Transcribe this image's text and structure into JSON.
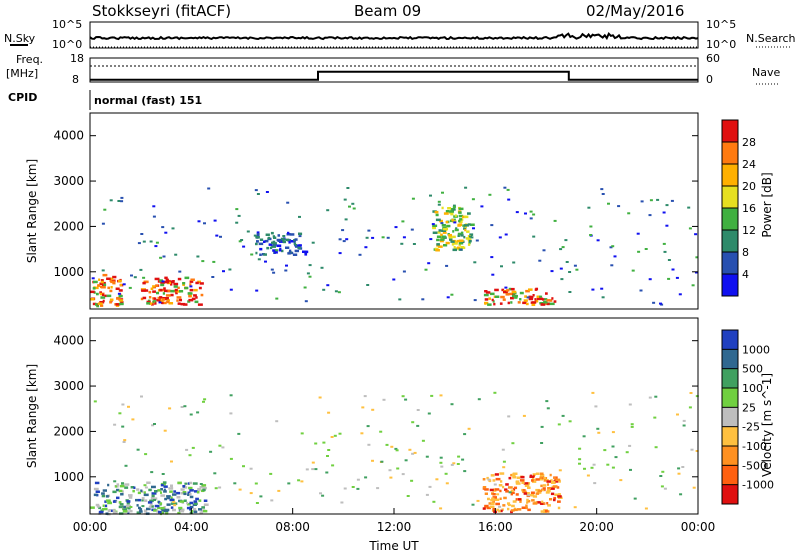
{
  "header": {
    "radar": "Stokkseyri (fitACF)",
    "beam": "Beam 09",
    "date": "02/May/2016"
  },
  "noise_panel": {
    "left_label": "N.Sky",
    "right_label": "N.Search",
    "left_ticks": [
      "10^5",
      "10^0"
    ],
    "right_ticks": [
      "10^5",
      "10^0"
    ]
  },
  "freq_panel": {
    "label_line1": "Freq.",
    "label_line2": "[MHz]",
    "left_ticks": [
      "18",
      "8"
    ],
    "right_ticks": [
      "60",
      "0"
    ],
    "right_label": "Nave",
    "cpid_label": "CPID",
    "cpid_text": "normal (fast) 151"
  },
  "chart_data": [
    {
      "type": "heatmap",
      "title": "",
      "xlabel": "",
      "ylabel": "Slant Range [km]",
      "y_ticks": [
        "1000",
        "2000",
        "3000",
        "4000"
      ],
      "ylim": [
        180,
        4500
      ],
      "colorbar_label": "Power [dB]",
      "colorbar_ticks": [
        "28",
        "24",
        "20",
        "16",
        "12",
        "8",
        "4"
      ],
      "colors": [
        "#e01010",
        "#ff7a10",
        "#ffb000",
        "#e6e020",
        "#40b040",
        "#2e8a6a",
        "#2850b0",
        "#1010f0"
      ],
      "features": [
        {
          "t": [
            0.0,
            1.2
          ],
          "r": [
            250,
            1000
          ],
          "level": "high"
        },
        {
          "t": [
            2.0,
            4.4
          ],
          "r": [
            300,
            900
          ],
          "level": "high"
        },
        {
          "t": [
            15.5,
            18.3
          ],
          "r": [
            300,
            650
          ],
          "level": "high"
        },
        {
          "t": [
            13.5,
            15.0
          ],
          "r": [
            1500,
            2500
          ],
          "level": "mid"
        },
        {
          "t": [
            6.5,
            8.5
          ],
          "r": [
            1400,
            1900
          ],
          "level": "low"
        }
      ]
    },
    {
      "type": "heatmap",
      "title": "",
      "xlabel": "Time UT",
      "ylabel": "Slant Range [km]",
      "x_ticks": [
        "00:00",
        "04:00",
        "08:00",
        "12:00",
        "16:00",
        "20:00",
        "00:00"
      ],
      "y_ticks": [
        "1000",
        "2000",
        "3000",
        "4000"
      ],
      "ylim": [
        180,
        4500
      ],
      "colorbar_label": "Velocity [m s^-1]",
      "colorbar_ticks": [
        "1000",
        "500",
        "100",
        "25",
        "-25",
        "-100",
        "-500",
        "-1000"
      ],
      "colors": [
        "#2040c0",
        "#306890",
        "#40a060",
        "#70d040",
        "#bebebe",
        "#ffc040",
        "#ff9020",
        "#ff6010",
        "#e01010"
      ],
      "features": [
        {
          "t": [
            0.0,
            4.5
          ],
          "r": [
            200,
            900
          ],
          "level": "positive"
        },
        {
          "t": [
            15.5,
            18.5
          ],
          "r": [
            250,
            1100
          ],
          "level": "negative"
        }
      ]
    }
  ]
}
